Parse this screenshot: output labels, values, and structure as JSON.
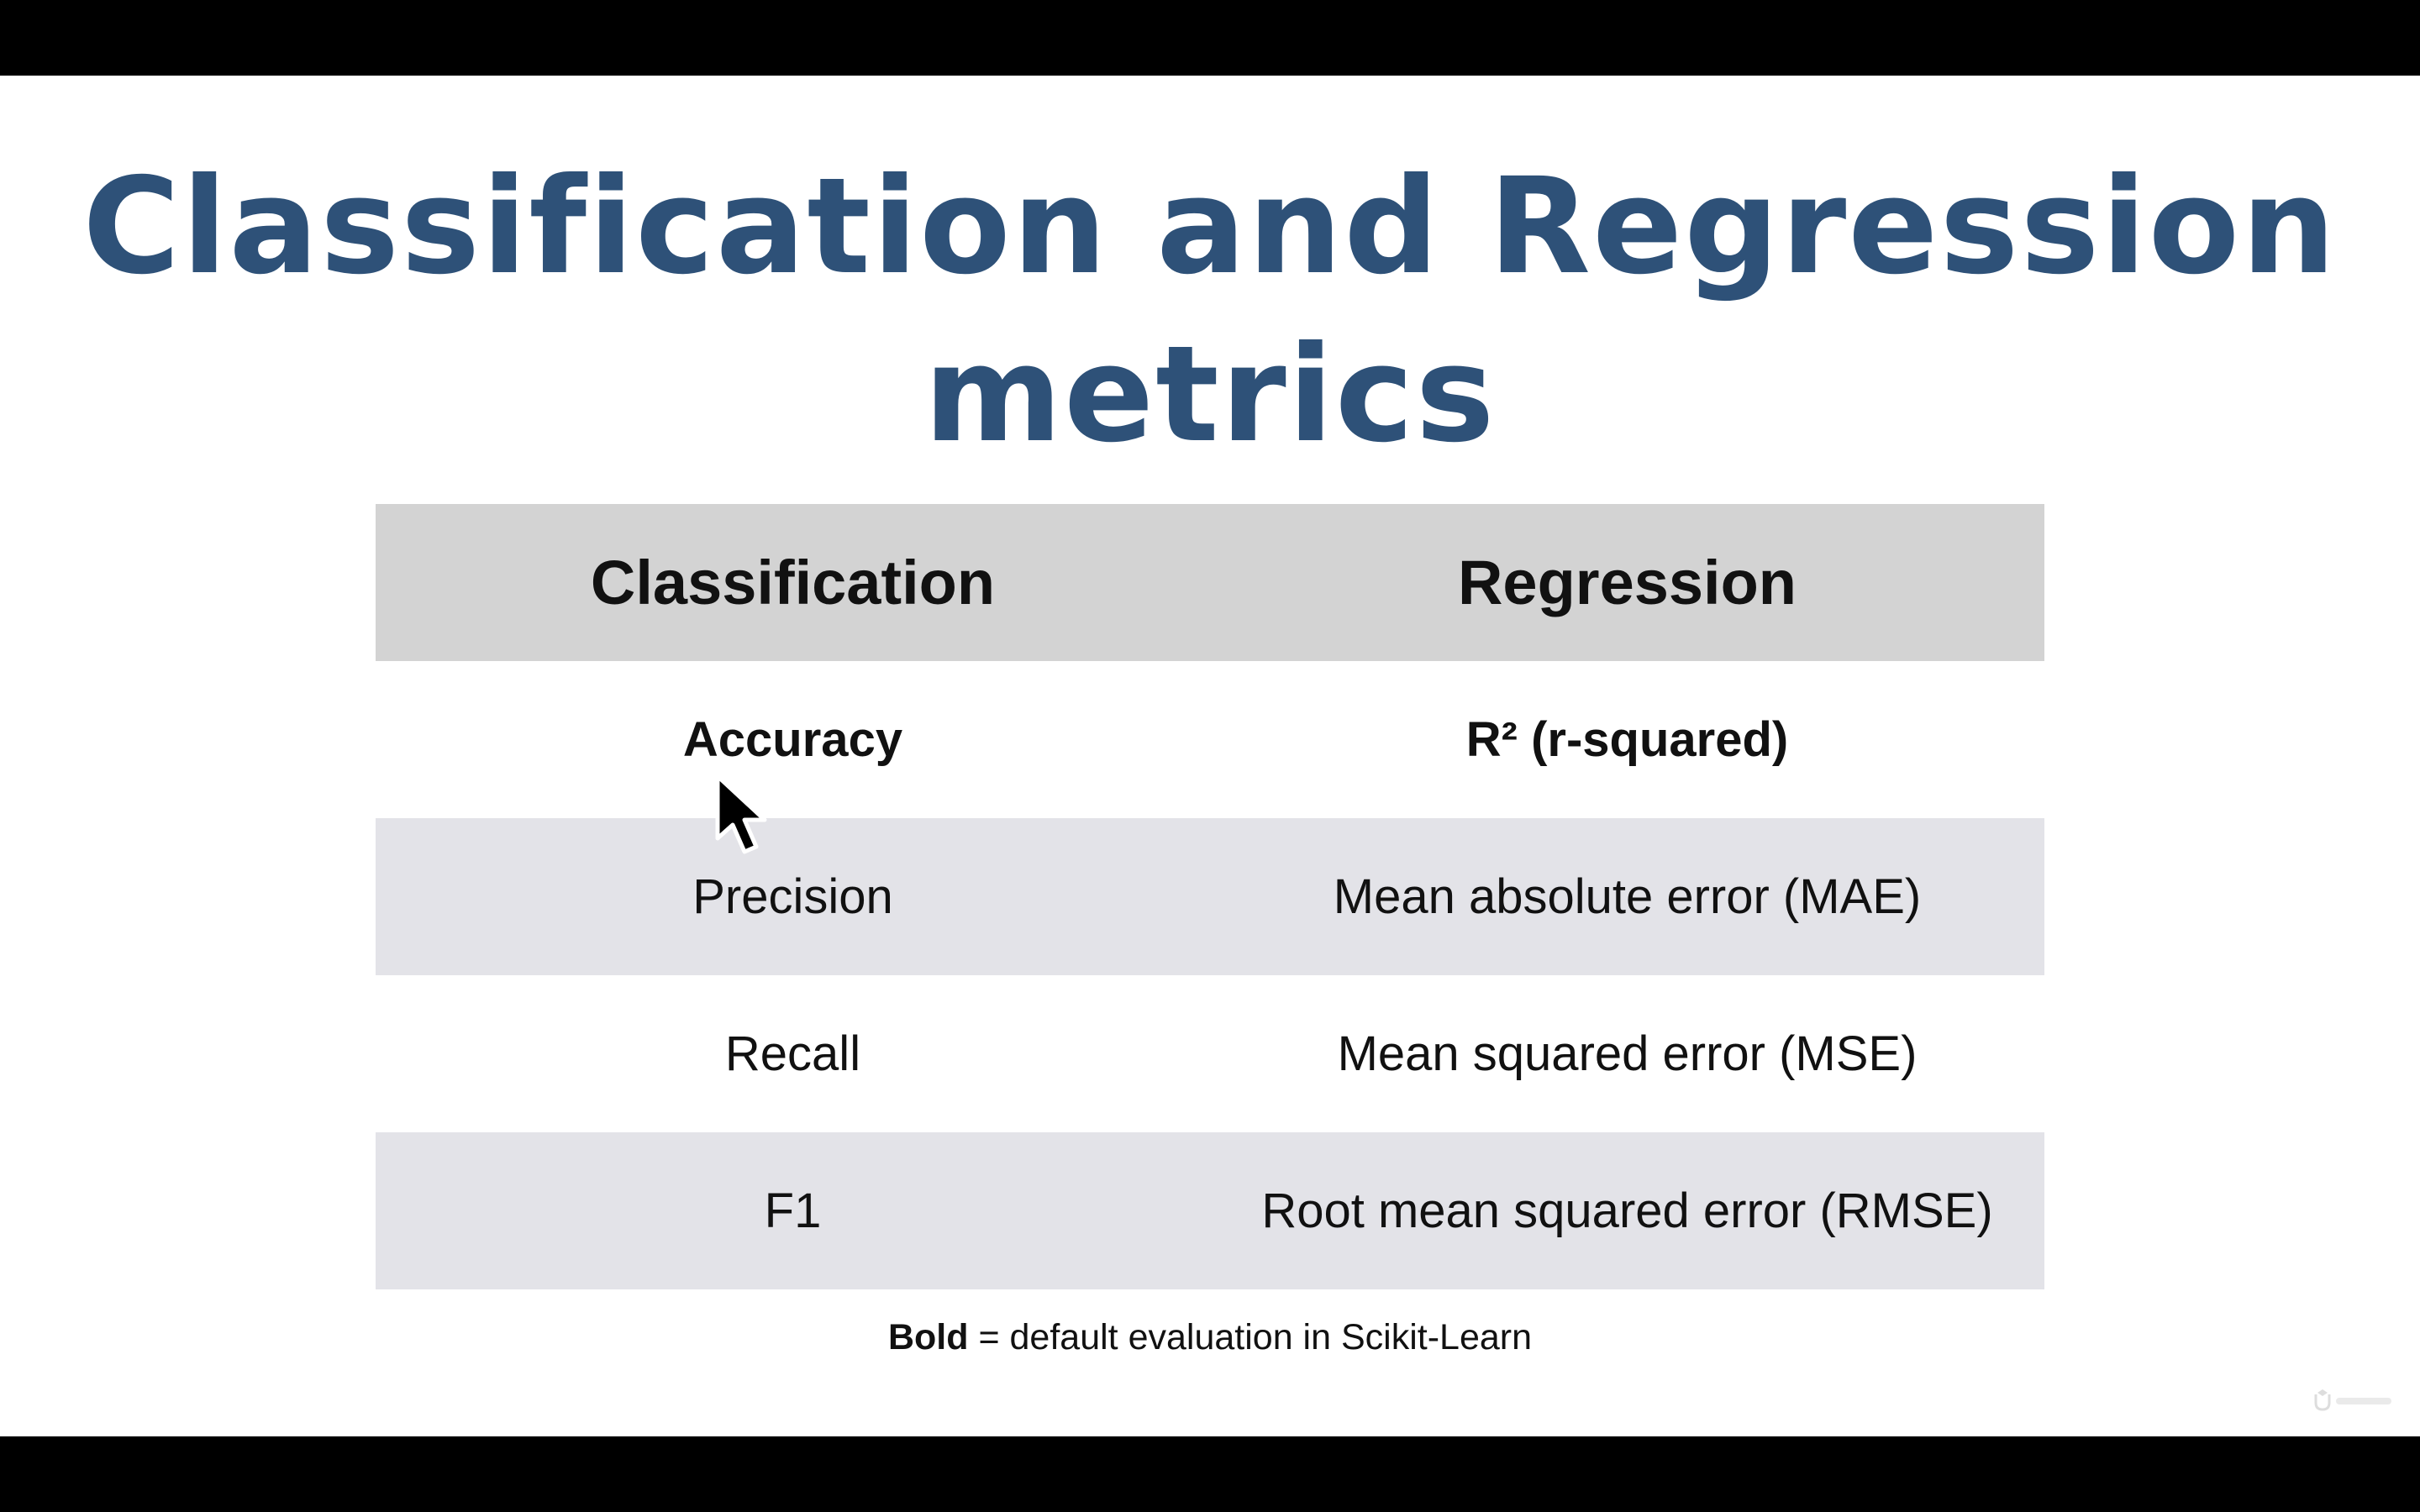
{
  "slide": {
    "title_line1": "Classification and Regression",
    "title_line2": "metrics"
  },
  "table": {
    "headers": [
      "Classification",
      "Regression"
    ],
    "rows": [
      {
        "classification": "Accuracy",
        "regression": "R² (r-squared)",
        "bold": true
      },
      {
        "classification": "Precision",
        "regression": "Mean absolute error (MAE)",
        "bold": false
      },
      {
        "classification": "Recall",
        "regression": "Mean squared error (MSE)",
        "bold": false
      },
      {
        "classification": "F1",
        "regression": "Root mean squared error (RMSE)",
        "bold": false
      }
    ]
  },
  "footnote": {
    "bold_part": "Bold",
    "rest": " = default evaluation in Scikit-Learn"
  },
  "icons": {
    "cursor": "mouse-pointer-icon",
    "watermark": "udemy-logo"
  },
  "colors": {
    "title": "#2e5178",
    "header_bg": "#d3d3d3",
    "shaded_row_bg": "#e3e3e8"
  }
}
